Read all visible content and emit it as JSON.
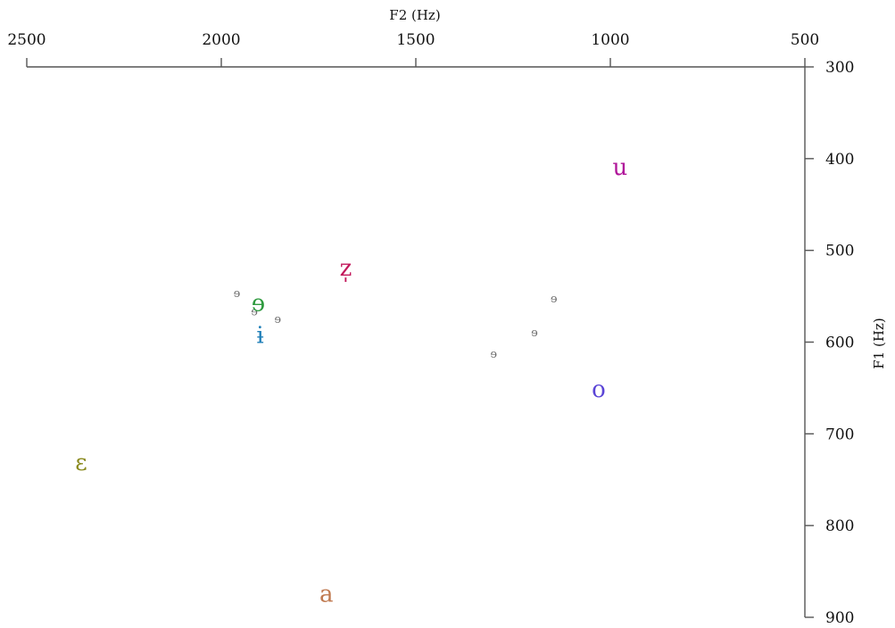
{
  "chart_data": {
    "type": "scatter",
    "xlabel": "F2 (Hz)",
    "ylabel": "F1 (Hz)",
    "xlim": [
      2500,
      500
    ],
    "ylim": [
      300,
      900
    ],
    "x_reversed": true,
    "y_reversed": true,
    "x_axis_position": "top",
    "y_axis_position": "right",
    "grid": false,
    "x_ticks": [
      2500,
      2000,
      1500,
      1000,
      500
    ],
    "y_ticks": [
      300,
      400,
      500,
      600,
      700,
      800,
      900
    ],
    "points": [
      {
        "label": "u",
        "f2": 975,
        "f1": 410,
        "color": "#b0179a"
      },
      {
        "label": "z̩",
        "f2": 1680,
        "f1": 520,
        "color": "#c2185b"
      },
      {
        "label": "ɘ",
        "f2": 1905,
        "f1": 558,
        "color": "#2e9a3e"
      },
      {
        "label": "ɨ",
        "f2": 1900,
        "f1": 593,
        "color": "#1f7fb8"
      },
      {
        "label": "o",
        "f2": 1030,
        "f1": 652,
        "color": "#5a44d6"
      },
      {
        "label": "ɛ",
        "f2": 2360,
        "f1": 732,
        "color": "#8a8a1e"
      },
      {
        "label": "a",
        "f2": 1730,
        "f1": 875,
        "color": "#c07a50"
      }
    ],
    "small_points": [
      {
        "label": "ɘ",
        "f2": 1960,
        "f1": 547,
        "color": "#6b6b6b"
      },
      {
        "label": "ɘ",
        "f2": 1915,
        "f1": 567,
        "color": "#6b6b6b"
      },
      {
        "label": "ɘ",
        "f2": 1855,
        "f1": 575,
        "color": "#6b6b6b"
      },
      {
        "label": "ɘ",
        "f2": 1145,
        "f1": 553,
        "color": "#6b6b6b"
      },
      {
        "label": "ɘ",
        "f2": 1195,
        "f1": 590,
        "color": "#6b6b6b"
      },
      {
        "label": "ɘ",
        "f2": 1300,
        "f1": 613,
        "color": "#6b6b6b"
      }
    ]
  }
}
